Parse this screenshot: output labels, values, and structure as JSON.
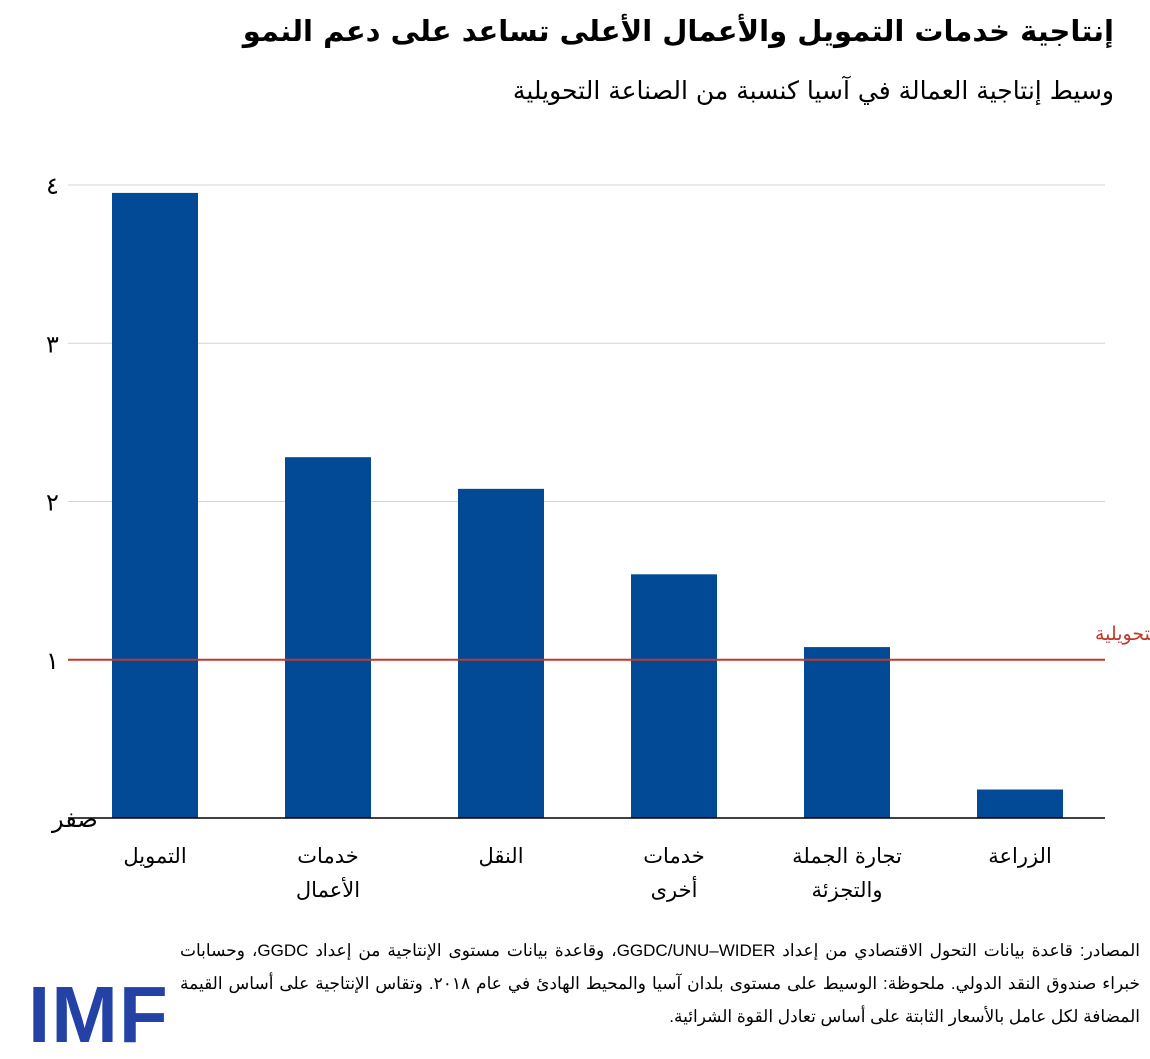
{
  "title": "إنتاجية خدمات التمويل والأعمال الأعلى تساعد على دعم النمو",
  "subtitle": "وسيط إنتاجية العمالة في آسيا كنسبة من الصناعة التحويلية",
  "chart_data": {
    "type": "bar",
    "categories": [
      [
        "التمويل"
      ],
      [
        "خدمات",
        "الأعمال"
      ],
      [
        "النقل"
      ],
      [
        "خدمات",
        "أخرى"
      ],
      [
        "تجارة الجملة",
        "والتجزئة"
      ],
      [
        "الزراعة"
      ]
    ],
    "values": [
      3.95,
      2.28,
      2.08,
      1.54,
      1.08,
      0.18
    ],
    "ylim": [
      0,
      4
    ],
    "yticks": [
      0,
      1,
      2,
      3,
      4
    ],
    "ytick_labels": [
      "صفر",
      "١",
      "٢",
      "٣",
      "٤"
    ],
    "grid": true,
    "reference_line": {
      "value": 1,
      "label": "الصناعة التحويلية",
      "color": "#c0392b"
    },
    "bar_color": "#034a96"
  },
  "footer": "المصادر: قاعدة بيانات التحول الاقتصادي من إعداد GGDC/UNU–WIDER، وقاعدة بيانات مستوى الإنتاجية من إعداد GGDC، وحسابات خبراء صندوق النقد الدولي. ملحوظة: الوسيط على مستوى بلدان آسيا والمحيط الهادئ في عام ٢٠١٨. وتقاس الإنتاجية على أساس القيمة المضافة لكل عامل بالأسعار الثابتة على أساس تعادل القوة الشرائية.",
  "logo": "IMF"
}
